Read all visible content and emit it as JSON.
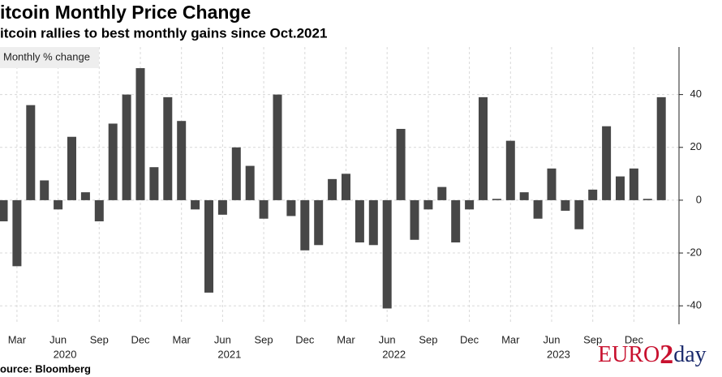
{
  "chart_data": {
    "type": "bar",
    "title": "itcoin Monthly Price Change",
    "subtitle": "itcoin rallies to best monthly gains since Oct.2021",
    "legend_label": "Monthly % change",
    "source": "ource: Bloomberg",
    "watermark": [
      "EURO",
      "2",
      "day"
    ],
    "color": "#474747",
    "categories": [
      null,
      "Mar",
      null,
      null,
      "Jun",
      null,
      null,
      "Sep",
      null,
      null,
      "Dec",
      null,
      null,
      "Mar",
      null,
      null,
      "Jun",
      null,
      null,
      "Sep",
      null,
      null,
      "Dec",
      null,
      null,
      "Mar",
      null,
      null,
      "Jun",
      null,
      null,
      "Sep",
      null,
      null,
      "Dec",
      null,
      null,
      "Mar",
      null,
      null,
      "Jun",
      null,
      null,
      "Sep",
      null,
      null,
      "Dec",
      null,
      null
    ],
    "years": [
      "2020",
      "2021",
      "2022",
      "2023"
    ],
    "values": [
      -8,
      -25,
      36,
      7.5,
      -3.5,
      24,
      3,
      -8,
      29,
      40,
      50,
      12.5,
      39,
      30,
      -3.5,
      -35,
      -5.5,
      20,
      13,
      -7,
      40,
      -6,
      -19,
      -17,
      8,
      10,
      -16,
      -17,
      -41,
      27,
      -15,
      -3.5,
      5,
      -16,
      -3.5,
      39,
      0.5,
      22.5,
      3,
      -7,
      12,
      -4,
      -11,
      4,
      28,
      9,
      12,
      0.5,
      39
    ],
    "ylim": [
      -47,
      58
    ],
    "yticks": [
      -40,
      -20,
      0,
      20,
      40
    ],
    "grid": true
  }
}
